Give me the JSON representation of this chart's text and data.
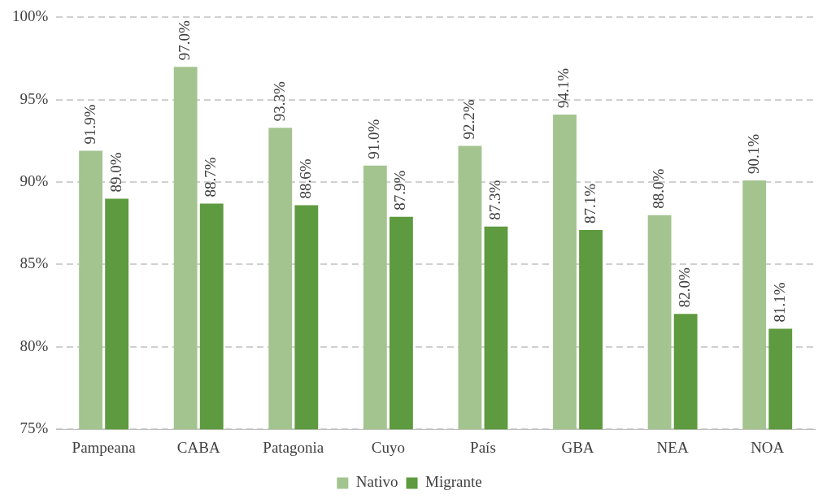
{
  "chart_data": {
    "type": "bar",
    "categories": [
      "Pampeana",
      "CABA",
      "Patagonia",
      "Cuyo",
      "País",
      "GBA",
      "NEA",
      "NOA"
    ],
    "series": [
      {
        "name": "Nativo",
        "color": "#a3c48f",
        "values": [
          91.9,
          97.0,
          93.3,
          91.0,
          92.2,
          94.1,
          88.0,
          90.1
        ],
        "value_labels": [
          "91.9%",
          "97.0%",
          "93.3%",
          "91.0%",
          "92.2%",
          "94.1%",
          "88.0%",
          "90.1%"
        ]
      },
      {
        "name": "Migrante",
        "color": "#5e9a3f",
        "values": [
          89.0,
          88.7,
          88.6,
          87.9,
          87.3,
          87.1,
          82.0,
          81.1
        ],
        "value_labels": [
          "89.0%",
          "88.7%",
          "88.6%",
          "87.9%",
          "87.3%",
          "87.1%",
          "82.0%",
          "81.1%"
        ]
      }
    ],
    "ylim": [
      75,
      100
    ],
    "yticks": [
      {
        "value": 75,
        "label": "75%"
      },
      {
        "value": 80,
        "label": "80%"
      },
      {
        "value": 85,
        "label": "85%"
      },
      {
        "value": 90,
        "label": "90%"
      },
      {
        "value": 95,
        "label": "95%"
      },
      {
        "value": 100,
        "label": "100%"
      }
    ],
    "grid": "y",
    "legend": "bottom"
  }
}
